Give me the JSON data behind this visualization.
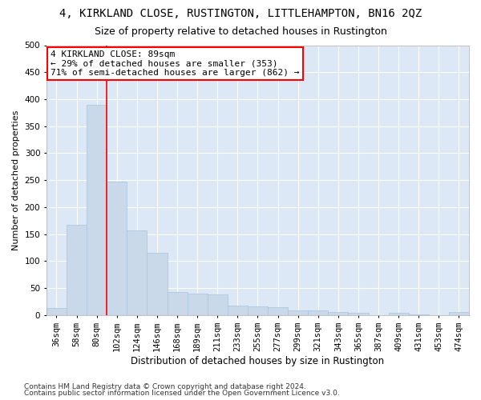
{
  "title": "4, KIRKLAND CLOSE, RUSTINGTON, LITTLEHAMPTON, BN16 2QZ",
  "subtitle": "Size of property relative to detached houses in Rustington",
  "xlabel": "Distribution of detached houses by size in Rustington",
  "ylabel": "Number of detached properties",
  "bar_color": "#c9d9ea",
  "bar_edgecolor": "#a8c4de",
  "bg_color": "#dce8f5",
  "grid_color": "#ffffff",
  "fig_bg_color": "#ffffff",
  "categories": [
    "36sqm",
    "58sqm",
    "80sqm",
    "102sqm",
    "124sqm",
    "146sqm",
    "168sqm",
    "189sqm",
    "211sqm",
    "233sqm",
    "255sqm",
    "277sqm",
    "299sqm",
    "321sqm",
    "343sqm",
    "365sqm",
    "387sqm",
    "409sqm",
    "431sqm",
    "453sqm",
    "474sqm"
  ],
  "values": [
    13,
    167,
    390,
    248,
    157,
    115,
    42,
    40,
    38,
    18,
    16,
    14,
    9,
    8,
    6,
    4,
    0,
    4,
    1,
    0,
    6
  ],
  "annotation_lines": [
    "4 KIRKLAND CLOSE: 89sqm",
    "← 29% of detached houses are smaller (353)",
    "71% of semi-detached houses are larger (862) →"
  ],
  "vline_pos": 2.5,
  "footnote1": "Contains HM Land Registry data © Crown copyright and database right 2024.",
  "footnote2": "Contains public sector information licensed under the Open Government Licence v3.0.",
  "ylim": [
    0,
    500
  ],
  "yticks": [
    0,
    50,
    100,
    150,
    200,
    250,
    300,
    350,
    400,
    450,
    500
  ],
  "title_fontsize": 10,
  "subtitle_fontsize": 9,
  "xlabel_fontsize": 8.5,
  "ylabel_fontsize": 8,
  "tick_fontsize": 7.5,
  "annotation_fontsize": 8,
  "footnote_fontsize": 6.5
}
